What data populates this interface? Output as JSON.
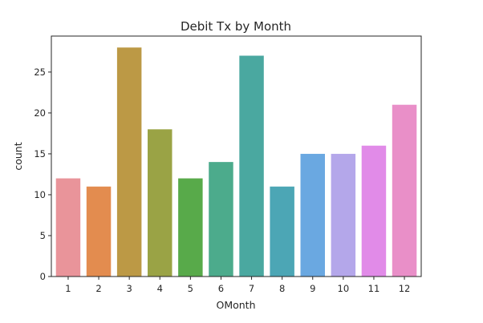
{
  "chart_data": {
    "type": "bar",
    "title": "Debit Tx by Month",
    "xlabel": "OMonth",
    "ylabel": "count",
    "categories": [
      "1",
      "2",
      "3",
      "4",
      "5",
      "6",
      "7",
      "8",
      "9",
      "10",
      "11",
      "12"
    ],
    "values": [
      12,
      11,
      28,
      18,
      12,
      14,
      27,
      11,
      15,
      15,
      16,
      21
    ],
    "ylim": [
      0,
      29.4
    ],
    "yticks": [
      0,
      5,
      10,
      15,
      20,
      25
    ],
    "grid": false,
    "colors": [
      "#e9949a",
      "#e38c4f",
      "#bc9945",
      "#9aa345",
      "#58aa4a",
      "#4cab8c",
      "#4aa8a0",
      "#4ca6b5",
      "#6aa8e1",
      "#b4a7ea",
      "#e18be8",
      "#e98fc8"
    ]
  }
}
